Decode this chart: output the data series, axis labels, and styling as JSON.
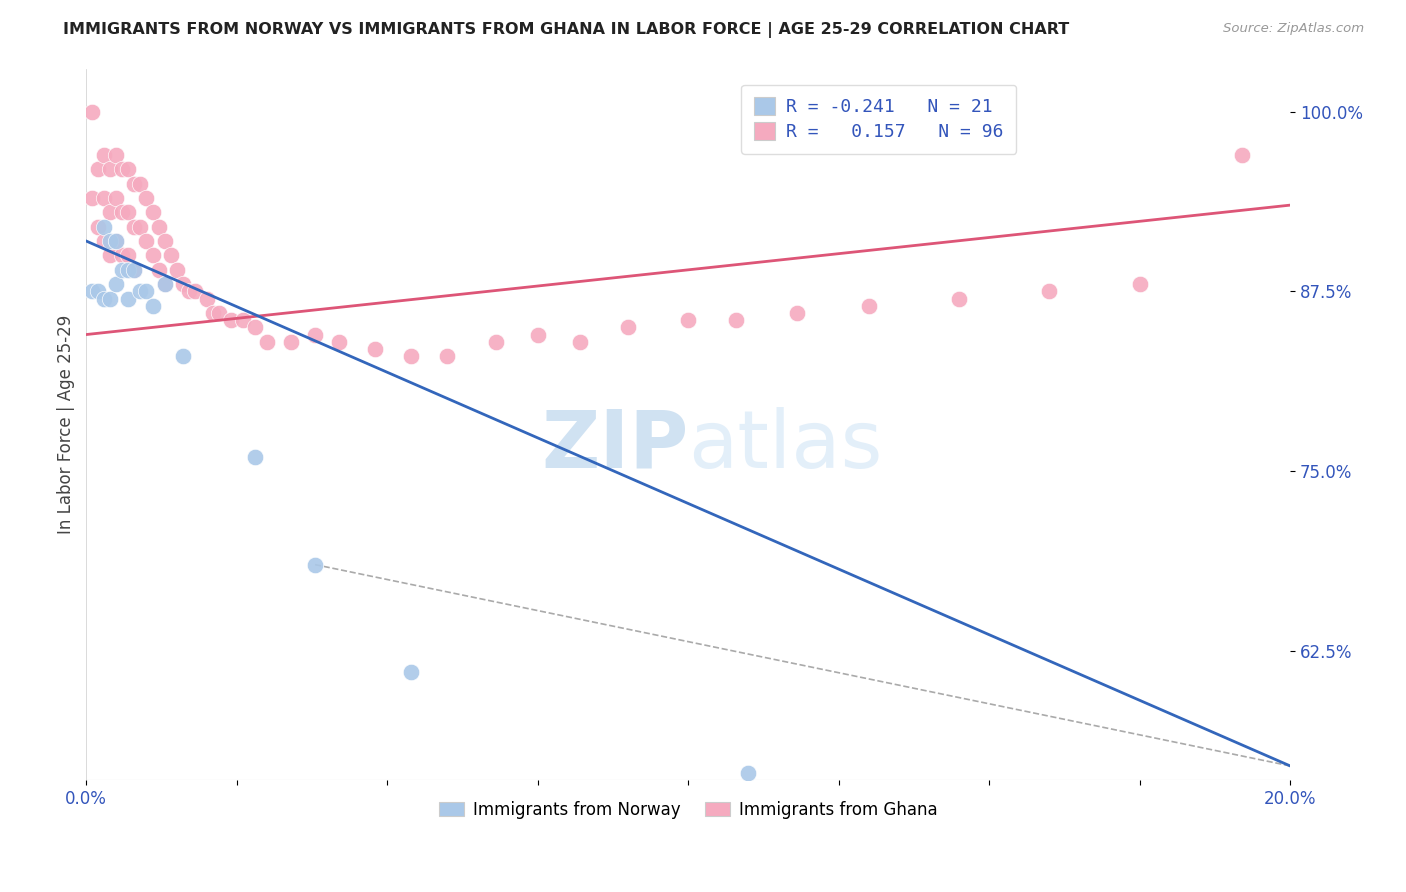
{
  "title": "IMMIGRANTS FROM NORWAY VS IMMIGRANTS FROM GHANA IN LABOR FORCE | AGE 25-29 CORRELATION CHART",
  "source": "Source: ZipAtlas.com",
  "ylabel": "In Labor Force | Age 25-29",
  "ytick_labels": [
    "100.0%",
    "87.5%",
    "75.0%",
    "62.5%"
  ],
  "ytick_values": [
    1.0,
    0.875,
    0.75,
    0.625
  ],
  "xlim": [
    0.0,
    0.2
  ],
  "ylim": [
    0.535,
    1.03
  ],
  "legend_R_norway": "-0.241",
  "legend_N_norway": "21",
  "legend_R_ghana": "0.157",
  "legend_N_ghana": "96",
  "norway_color": "#aac8e8",
  "ghana_color": "#f5aabf",
  "norway_line_color": "#3366bb",
  "ghana_line_color": "#dd5577",
  "dashed_line_color": "#aaaaaa",
  "norway_scatter_x": [
    0.001,
    0.002,
    0.003,
    0.003,
    0.004,
    0.004,
    0.005,
    0.005,
    0.006,
    0.007,
    0.007,
    0.008,
    0.009,
    0.01,
    0.011,
    0.013,
    0.016,
    0.028,
    0.038,
    0.054,
    0.11
  ],
  "norway_scatter_y": [
    0.875,
    0.875,
    0.92,
    0.87,
    0.91,
    0.87,
    0.91,
    0.88,
    0.89,
    0.89,
    0.87,
    0.89,
    0.875,
    0.875,
    0.865,
    0.88,
    0.83,
    0.76,
    0.685,
    0.61,
    0.54
  ],
  "ghana_scatter_x": [
    0.001,
    0.001,
    0.002,
    0.002,
    0.003,
    0.003,
    0.003,
    0.004,
    0.004,
    0.004,
    0.005,
    0.005,
    0.005,
    0.006,
    0.006,
    0.006,
    0.007,
    0.007,
    0.007,
    0.008,
    0.008,
    0.008,
    0.009,
    0.009,
    0.01,
    0.01,
    0.011,
    0.011,
    0.012,
    0.012,
    0.013,
    0.013,
    0.014,
    0.015,
    0.016,
    0.017,
    0.018,
    0.02,
    0.021,
    0.022,
    0.024,
    0.026,
    0.028,
    0.03,
    0.034,
    0.038,
    0.042,
    0.048,
    0.054,
    0.06,
    0.068,
    0.075,
    0.082,
    0.09,
    0.1,
    0.108,
    0.118,
    0.13,
    0.145,
    0.16,
    0.175,
    0.192
  ],
  "ghana_scatter_y": [
    1.0,
    0.94,
    0.96,
    0.92,
    0.97,
    0.94,
    0.91,
    0.96,
    0.93,
    0.9,
    0.97,
    0.94,
    0.91,
    0.96,
    0.93,
    0.9,
    0.96,
    0.93,
    0.9,
    0.95,
    0.92,
    0.89,
    0.95,
    0.92,
    0.94,
    0.91,
    0.93,
    0.9,
    0.92,
    0.89,
    0.91,
    0.88,
    0.9,
    0.89,
    0.88,
    0.875,
    0.875,
    0.87,
    0.86,
    0.86,
    0.855,
    0.855,
    0.85,
    0.84,
    0.84,
    0.845,
    0.84,
    0.835,
    0.83,
    0.83,
    0.84,
    0.845,
    0.84,
    0.85,
    0.855,
    0.855,
    0.86,
    0.865,
    0.87,
    0.875,
    0.88,
    0.97
  ],
  "norway_line_x": [
    0.0,
    0.2
  ],
  "norway_line_y": [
    0.91,
    0.545
  ],
  "ghana_line_x": [
    0.0,
    0.2
  ],
  "ghana_line_y": [
    0.845,
    0.935
  ],
  "dashed_line_x": [
    0.038,
    0.2
  ],
  "dashed_line_y": [
    0.685,
    0.545
  ],
  "watermark_zip": "ZIP",
  "watermark_atlas": "atlas",
  "background_color": "#ffffff",
  "grid_color": "#dddddd",
  "title_color": "#222222",
  "source_color": "#999999",
  "tick_color": "#3355bb"
}
